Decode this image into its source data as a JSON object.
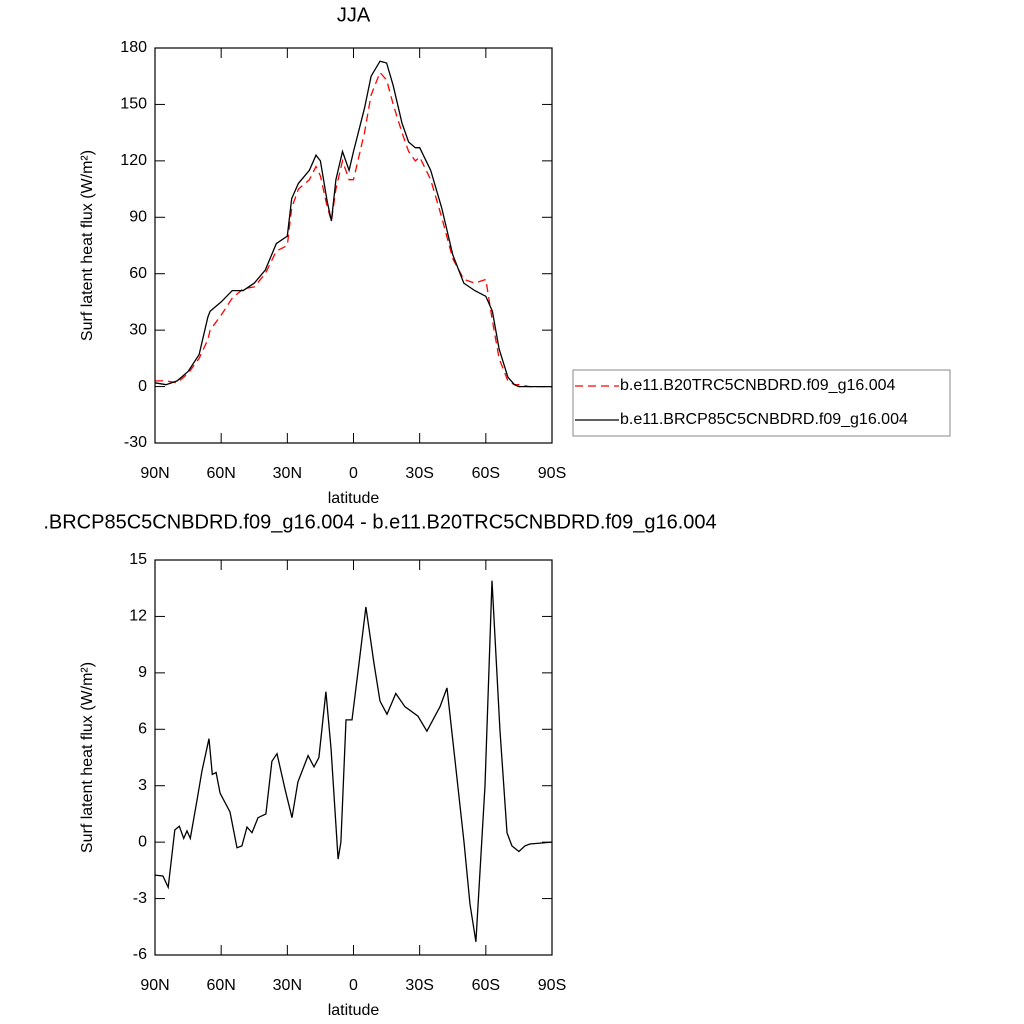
{
  "chart_data": [
    {
      "type": "line",
      "title": "JJA",
      "xlabel": "latitude",
      "ylabel": "Surf latent heat flux (W/m²)",
      "x": [
        90,
        85,
        80,
        75,
        70,
        66,
        65,
        60,
        55,
        50,
        45,
        40,
        35,
        30,
        28,
        25,
        20,
        17,
        15,
        12,
        10,
        8,
        5,
        2,
        0,
        -5,
        -8,
        -12,
        -15,
        -18,
        -22,
        -25,
        -28,
        -30,
        -35,
        -40,
        -45,
        -50,
        -55,
        -60,
        -63,
        -66,
        -70,
        -73,
        -75,
        -80,
        -90
      ],
      "series": [
        {
          "name": "b.e11.B20TRC5CNBDRD.f09_g16.004",
          "color": "#ff0000",
          "line_style": "dashed",
          "values": [
            3,
            3,
            2,
            7,
            15,
            25,
            30,
            38,
            47,
            52,
            53,
            60,
            72,
            75,
            95,
            105,
            110,
            117,
            112,
            96,
            88,
            105,
            120,
            110,
            110,
            135,
            155,
            167,
            163,
            150,
            135,
            125,
            120,
            122,
            110,
            90,
            68,
            57,
            55,
            57,
            35,
            15,
            3,
            1,
            1,
            0,
            0
          ]
        },
        {
          "name": "b.e11.BRCP85C5CNBDRD.f09_g16.004",
          "color": "#000000",
          "line_style": "solid",
          "values": [
            2,
            1,
            3,
            8,
            17,
            37,
            40,
            45,
            51,
            51,
            55,
            62,
            76,
            80,
            100,
            108,
            115,
            123,
            120,
            99,
            88,
            110,
            125,
            115,
            125,
            148,
            165,
            173,
            172,
            160,
            140,
            130,
            127,
            127,
            115,
            95,
            70,
            55,
            51,
            48,
            40,
            20,
            5,
            1,
            0,
            0,
            0
          ]
        }
      ],
      "xlim": [
        90,
        -90
      ],
      "xticks": [
        {
          "value": 90,
          "label": "90N"
        },
        {
          "value": 60,
          "label": "60N"
        },
        {
          "value": 30,
          "label": "30N"
        },
        0,
        {
          "value": -30,
          "label": "30S"
        },
        {
          "value": -60,
          "label": "60S"
        },
        {
          "value": -90,
          "label": "90S"
        }
      ],
      "ylim": [
        -30,
        180
      ],
      "yticks": [
        -30,
        0,
        30,
        60,
        90,
        120,
        150,
        180
      ],
      "legend": "right"
    },
    {
      "type": "line",
      "title": ".BRCP85C5CNBDRD.f09_g16.004 - b.e11.B20TRC5CNBDRD.f09_g16.004",
      "xlabel": "latitude",
      "ylabel": "Surf latent heat flux (W/m²)",
      "x": [
        90,
        86.4,
        84,
        81,
        79,
        77,
        75.5,
        74,
        71,
        68.7,
        65.5,
        64,
        62.3,
        60.5,
        56,
        52.8,
        50.6,
        48.3,
        46,
        43.3,
        39.7,
        37,
        34.7,
        31,
        27.9,
        25.2,
        20.6,
        17.9,
        15.7,
        12.5,
        10.2,
        7,
        5.7,
        3.4,
        0.7,
        -2.5,
        -5.6,
        -9.3,
        -12,
        -15.2,
        -19.2,
        -23.3,
        -29.2,
        -33.3,
        -36,
        -39.2,
        -42.4,
        -45.9,
        -50.1,
        -52.8,
        -55.5,
        -59.6,
        -62.8,
        -66.4,
        -69.6,
        -71.8,
        -75,
        -77.7,
        -80,
        -90
      ],
      "values": [
        -1.75,
        -1.8,
        -2.4,
        0.65,
        0.85,
        0.2,
        0.6,
        0.2,
        2.2,
        3.8,
        5.5,
        3.6,
        3.7,
        2.6,
        1.6,
        -0.3,
        -0.2,
        0.8,
        0.5,
        1.3,
        1.5,
        4.3,
        4.7,
        2.8,
        1.3,
        3.2,
        4.6,
        4.0,
        4.5,
        8.0,
        5.0,
        -0.9,
        0,
        6.5,
        6.5,
        9.5,
        12.5,
        9.5,
        7.5,
        6.8,
        7.9,
        7.2,
        6.7,
        5.9,
        6.5,
        7.2,
        8.2,
        4.5,
        0,
        -3.3,
        -5.3,
        3,
        13.9,
        6,
        0.5,
        -0.2,
        -0.5,
        -0.2,
        -0.1,
        0
      ],
      "color": "#000000",
      "xlim": [
        90,
        -90
      ],
      "xticks": [
        {
          "value": 90,
          "label": "90N"
        },
        {
          "value": 60,
          "label": "60N"
        },
        {
          "value": 30,
          "label": "30N"
        },
        0,
        {
          "value": -30,
          "label": "30S"
        },
        {
          "value": -60,
          "label": "60S"
        },
        {
          "value": -90,
          "label": "90S"
        }
      ],
      "ylim": [
        -6,
        15
      ],
      "yticks": [
        -6,
        -3,
        0,
        3,
        6,
        9,
        12,
        15
      ]
    }
  ]
}
